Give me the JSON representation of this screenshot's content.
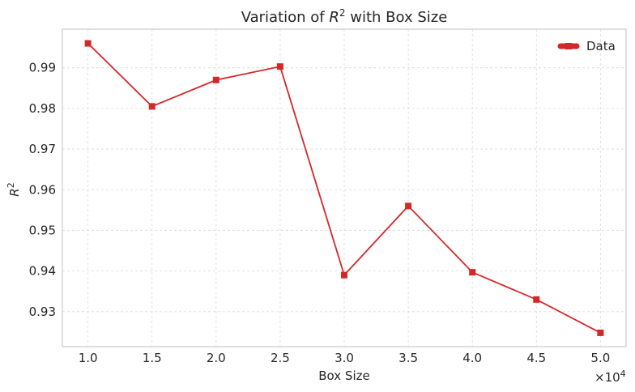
{
  "chart_data": {
    "type": "line",
    "title_main": "Variation of ",
    "title_var": "R",
    "title_sup": "2",
    "title_rest": " with Box Size",
    "xlabel": "Box Size",
    "ylabel_var": "R",
    "ylabel_sup": "2",
    "x_offset_base": "×10",
    "x_offset_exp": "4",
    "x": [
      10000,
      15000,
      20000,
      25000,
      30000,
      35000,
      40000,
      45000,
      50000
    ],
    "series": [
      {
        "name": "Data",
        "values": [
          0.996,
          0.9805,
          0.987,
          0.9903,
          0.939,
          0.956,
          0.9397,
          0.933,
          0.9248
        ],
        "color": "#d62728",
        "marker": "square"
      }
    ],
    "xticks": [
      10000,
      15000,
      20000,
      25000,
      30000,
      35000,
      40000,
      45000,
      50000
    ],
    "xtick_labels": [
      "1.0",
      "1.5",
      "2.0",
      "2.5",
      "3.0",
      "3.5",
      "4.0",
      "4.5",
      "5.0"
    ],
    "yticks": [
      0.93,
      0.94,
      0.95,
      0.96,
      0.97,
      0.98,
      0.99
    ],
    "ytick_labels": [
      "0.93",
      "0.94",
      "0.95",
      "0.96",
      "0.97",
      "0.98",
      "0.99"
    ],
    "xlim": [
      8000,
      52000
    ],
    "ylim": [
      0.9214,
      0.9995
    ],
    "grid": true,
    "legend_position": "top-right"
  }
}
